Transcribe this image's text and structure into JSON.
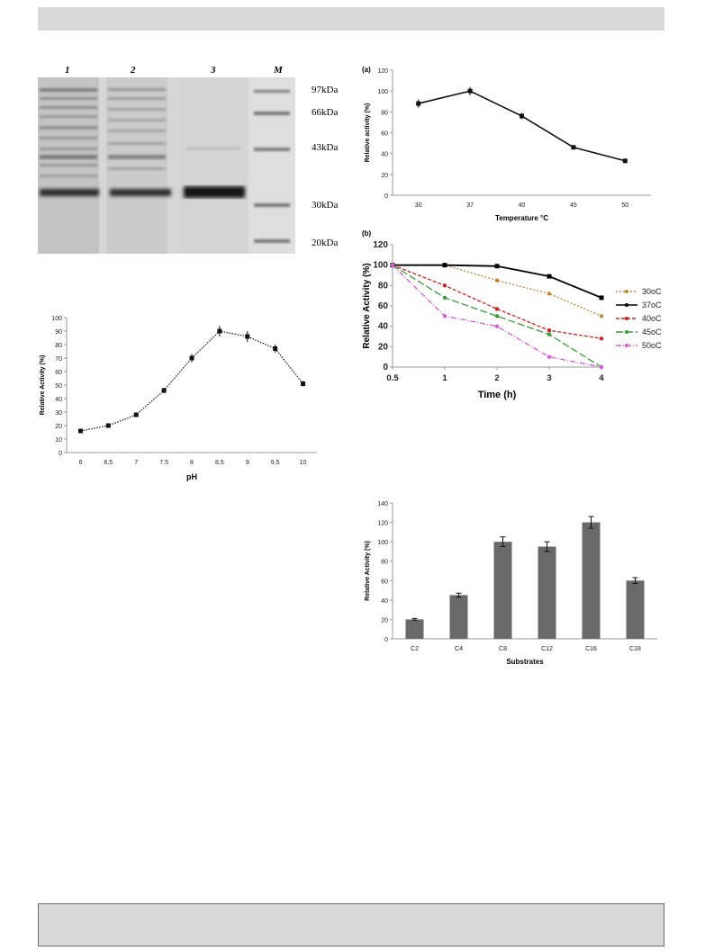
{
  "gel": {
    "lanes": [
      "1",
      "2",
      "3",
      "M"
    ],
    "markers": [
      "97kDa",
      "66kDa",
      "43kDa",
      "30kDa",
      "20kDa"
    ]
  },
  "chart_data": [
    {
      "id": "temperature",
      "type": "line",
      "panel_label": "(a)",
      "xlabel": "Temperature °C",
      "ylabel": "Relative activity (%)",
      "categories": [
        "30",
        "37",
        "40",
        "45",
        "50"
      ],
      "series": [
        {
          "values": [
            88,
            100,
            76,
            46,
            33
          ],
          "errors": [
            4,
            4,
            3,
            1,
            1
          ]
        }
      ],
      "ylim": [
        0,
        120
      ],
      "yticks": [
        0,
        20,
        40,
        60,
        80,
        100,
        120
      ],
      "grid": false
    },
    {
      "id": "thermostability",
      "type": "line",
      "panel_label": "(b)",
      "xlabel": "Time (h)",
      "ylabel": "Relative Activity (%)",
      "categories": [
        "0.5",
        "1",
        "2",
        "3",
        "4"
      ],
      "ylim": [
        0,
        120
      ],
      "yticks": [
        0,
        20,
        40,
        60,
        80,
        100,
        120
      ],
      "legend": "right",
      "series": [
        {
          "name": "30oC",
          "color": "#c0853b",
          "values": [
            100,
            100,
            85,
            72,
            50
          ]
        },
        {
          "name": "37oC",
          "color": "#000000",
          "values": [
            100,
            100,
            99,
            89,
            68
          ]
        },
        {
          "name": "40oC",
          "color": "#cc2222",
          "values": [
            100,
            80,
            57,
            36,
            28
          ]
        },
        {
          "name": "45oC",
          "color": "#3a9a3a",
          "values": [
            100,
            68,
            50,
            32,
            0
          ]
        },
        {
          "name": "50oC",
          "color": "#d65bd6",
          "values": [
            100,
            50,
            40,
            10,
            0
          ]
        }
      ]
    },
    {
      "id": "ph",
      "type": "line",
      "xlabel": "pH",
      "ylabel": "Relative Activity (%)",
      "categories": [
        "6",
        "6.5",
        "7",
        "7.5",
        "8",
        "8.5",
        "9",
        "9.5",
        "10"
      ],
      "series": [
        {
          "values": [
            16,
            20,
            28,
            46,
            70,
            90,
            86,
            77,
            51
          ],
          "errors": [
            1,
            1,
            1,
            2,
            3,
            4,
            4,
            3,
            2
          ]
        }
      ],
      "ylim": [
        0,
        100
      ],
      "yticks": [
        0,
        10,
        20,
        30,
        40,
        50,
        60,
        70,
        80,
        90,
        100
      ],
      "grid": false
    },
    {
      "id": "substrates",
      "type": "bar",
      "xlabel": "Substrates",
      "ylabel": "Relative Activity (%)",
      "categories": [
        "C2",
        "C4",
        "C8",
        "C12",
        "C16",
        "C18"
      ],
      "values": [
        20,
        45,
        100,
        95,
        120,
        60
      ],
      "errors": [
        1,
        2,
        5,
        5,
        6,
        3
      ],
      "ylim": [
        0,
        140
      ],
      "yticks": [
        0,
        20,
        40,
        60,
        80,
        100,
        120,
        140
      ],
      "color": "#696969",
      "grid": false
    }
  ]
}
